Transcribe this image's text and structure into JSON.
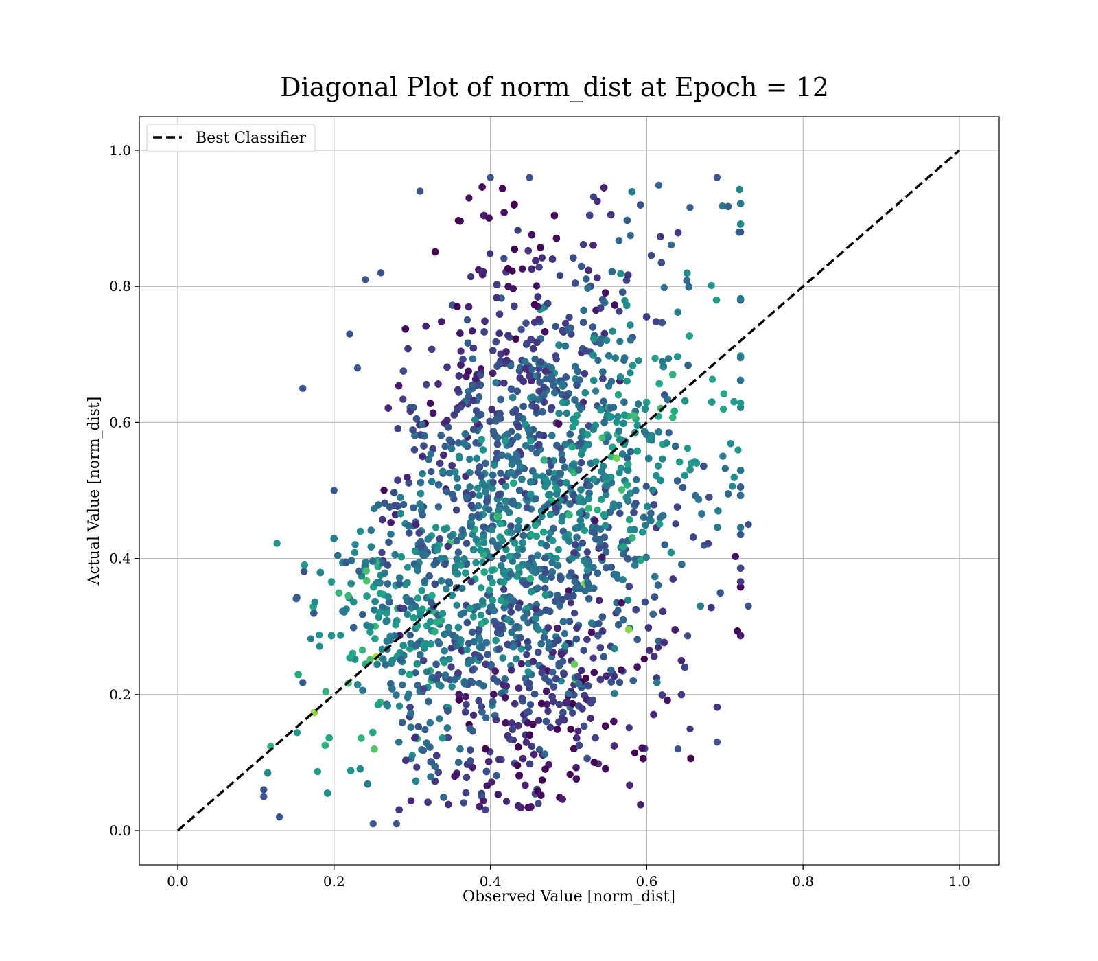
{
  "chart_data": {
    "type": "scatter",
    "title": "Diagonal Plot of norm_dist at Epoch = 12",
    "xlabel": "Observed Value [norm_dist]",
    "ylabel": "Actual Value [norm_dist]",
    "xlim": [
      -0.05,
      1.05
    ],
    "ylim": [
      -0.05,
      1.05
    ],
    "xticks": [
      "0.0",
      "0.2",
      "0.4",
      "0.6",
      "0.8",
      "1.0"
    ],
    "yticks": [
      "0.0",
      "0.2",
      "0.4",
      "0.6",
      "0.8",
      "1.0"
    ],
    "grid": true,
    "legend": {
      "placement": "top-left",
      "entries": [
        "Best Classifier"
      ]
    },
    "colormap": "viridis",
    "colors": {
      "line": "#000000",
      "grid": "#b0b0b0",
      "dark": "#440154",
      "mid_dark": "#3b528b",
      "mid": "#21918c",
      "light": "#5ec962",
      "bright": "#bddf26"
    },
    "series": [
      {
        "name": "Best Classifier",
        "kind": "line",
        "style": "dashed",
        "x": [
          0.0,
          1.0
        ],
        "y": [
          0.0,
          1.0
        ]
      },
      {
        "kind": "scatter",
        "description_of_cloud": [
          {
            "x_range": [
              0.12,
              0.3
            ],
            "y_range": [
              0.02,
              0.45
            ],
            "tone": "mid"
          },
          {
            "x_range": [
              0.3,
              0.5
            ],
            "y_range": [
              0.03,
              0.95
            ],
            "tone": "dark"
          },
          {
            "x_range": [
              0.5,
              0.72
            ],
            "y_range": [
              0.1,
              0.95
            ],
            "tone": "mid_dark"
          }
        ],
        "points": [
          {
            "x": 0.16,
            "y": 0.65
          },
          {
            "x": 0.24,
            "y": 0.81
          },
          {
            "x": 0.26,
            "y": 0.82
          },
          {
            "x": 0.31,
            "y": 0.94
          },
          {
            "x": 0.4,
            "y": 0.96
          },
          {
            "x": 0.45,
            "y": 0.96
          },
          {
            "x": 0.69,
            "y": 0.96
          },
          {
            "x": 0.73,
            "y": 0.33
          },
          {
            "x": 0.69,
            "y": 0.13
          },
          {
            "x": 0.64,
            "y": 0.12
          },
          {
            "x": 0.11,
            "y": 0.06
          },
          {
            "x": 0.11,
            "y": 0.05
          },
          {
            "x": 0.25,
            "y": 0.01
          },
          {
            "x": 0.28,
            "y": 0.01
          },
          {
            "x": 0.13,
            "y": 0.02
          },
          {
            "x": 0.22,
            "y": 0.73
          },
          {
            "x": 0.23,
            "y": 0.68
          },
          {
            "x": 0.73,
            "y": 0.45
          },
          {
            "x": 0.72,
            "y": 0.88
          },
          {
            "x": 0.2,
            "y": 0.5
          }
        ]
      }
    ]
  }
}
